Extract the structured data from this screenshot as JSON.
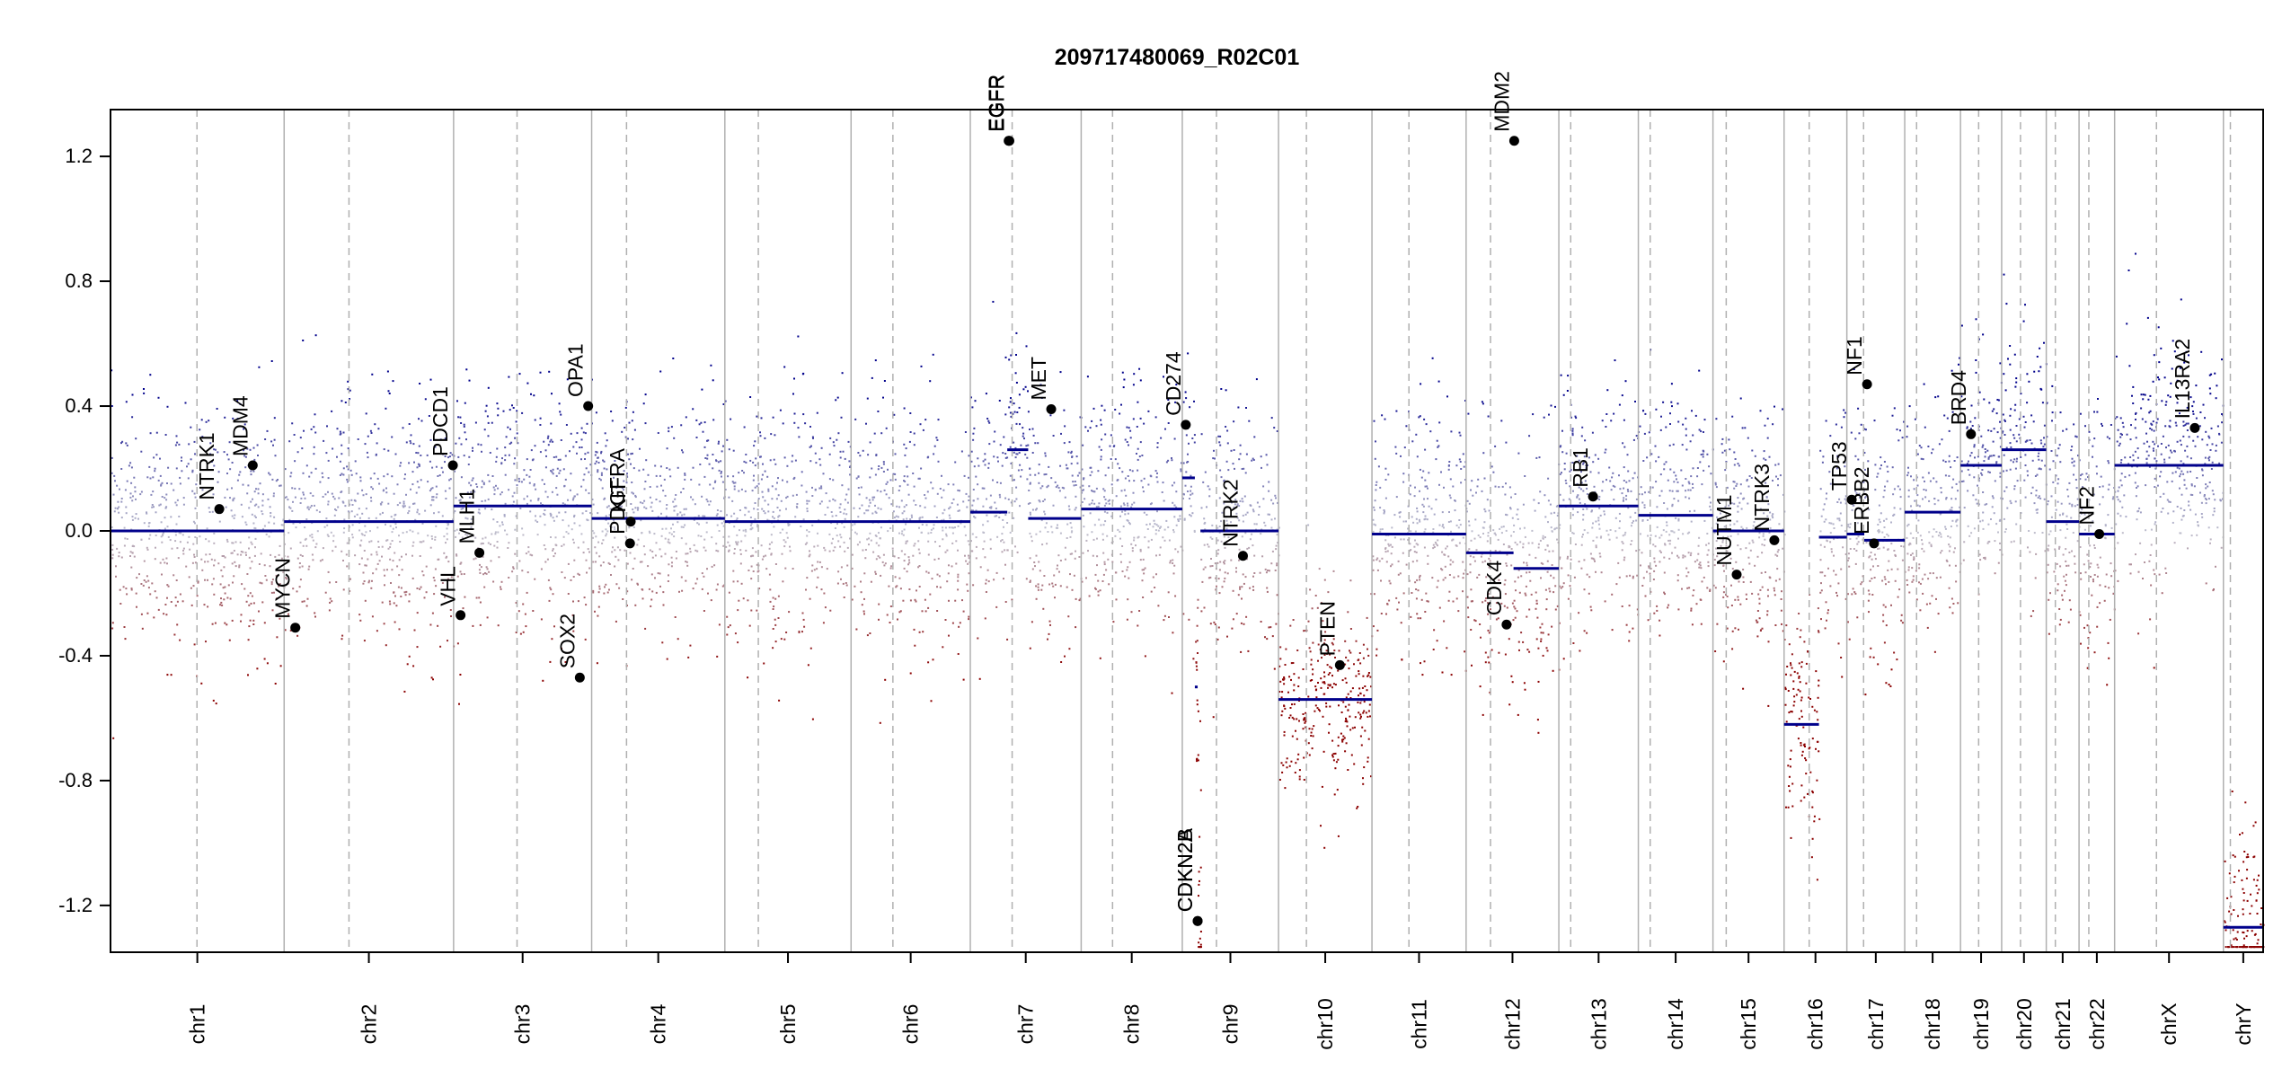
{
  "chart_data": {
    "type": "scatter",
    "title": "209717480069_R02C01",
    "xlabel": "",
    "ylabel": "",
    "ylim": [
      -1.35,
      1.35
    ],
    "yticks": [
      -1.2,
      -0.8,
      -0.4,
      0.0,
      0.4,
      0.8,
      1.2
    ],
    "ytick_labels": [
      "-1.2",
      "-0.8",
      "-0.4",
      "0.0",
      "0.4",
      "0.8",
      "1.2"
    ],
    "x_units": "Mb (cumulative genome position)",
    "chromosomes": [
      {
        "name": "chr1",
        "length": 249,
        "centromere": 124
      },
      {
        "name": "chr2",
        "length": 243,
        "centromere": 93
      },
      {
        "name": "chr3",
        "length": 198,
        "centromere": 91
      },
      {
        "name": "chr4",
        "length": 191,
        "centromere": 50
      },
      {
        "name": "chr5",
        "length": 181,
        "centromere": 48
      },
      {
        "name": "chr6",
        "length": 171,
        "centromere": 60
      },
      {
        "name": "chr7",
        "length": 159,
        "centromere": 60
      },
      {
        "name": "chr8",
        "length": 145,
        "centromere": 45
      },
      {
        "name": "chr9",
        "length": 138,
        "centromere": 49
      },
      {
        "name": "chr10",
        "length": 134,
        "centromere": 40
      },
      {
        "name": "chr11",
        "length": 135,
        "centromere": 53
      },
      {
        "name": "chr12",
        "length": 133,
        "centromere": 35
      },
      {
        "name": "chr13",
        "length": 114,
        "centromere": 17
      },
      {
        "name": "chr14",
        "length": 107,
        "centromere": 17
      },
      {
        "name": "chr15",
        "length": 102,
        "centromere": 19
      },
      {
        "name": "chr16",
        "length": 90,
        "centromere": 36
      },
      {
        "name": "chr17",
        "length": 83,
        "centromere": 24
      },
      {
        "name": "chr18",
        "length": 80,
        "centromere": 17
      },
      {
        "name": "chr19",
        "length": 59,
        "centromere": 26
      },
      {
        "name": "chr20",
        "length": 64,
        "centromere": 27
      },
      {
        "name": "chr21",
        "length": 47,
        "centromere": 13
      },
      {
        "name": "chr22",
        "length": 51,
        "centromere": 14
      },
      {
        "name": "chrX",
        "length": 156,
        "centromere": 60
      },
      {
        "name": "chrY",
        "length": 57,
        "centromere": 10
      }
    ],
    "segments": [
      {
        "chr": "chr1",
        "start": 0,
        "end": 249,
        "value": 0.0
      },
      {
        "chr": "chr2",
        "start": 0,
        "end": 243,
        "value": 0.03
      },
      {
        "chr": "chr3",
        "start": 0,
        "end": 198,
        "value": 0.08
      },
      {
        "chr": "chr4",
        "start": 0,
        "end": 191,
        "value": 0.04
      },
      {
        "chr": "chr5",
        "start": 0,
        "end": 181,
        "value": 0.03
      },
      {
        "chr": "chr6",
        "start": 0,
        "end": 171,
        "value": 0.03
      },
      {
        "chr": "chr7",
        "start": 0,
        "end": 53,
        "value": 0.06
      },
      {
        "chr": "chr7",
        "start": 53,
        "end": 83,
        "value": 0.26
      },
      {
        "chr": "chr7",
        "start": 83,
        "end": 159,
        "value": 0.04
      },
      {
        "chr": "chr8",
        "start": 0,
        "end": 145,
        "value": 0.07
      },
      {
        "chr": "chr9",
        "start": 0,
        "end": 18,
        "value": 0.17
      },
      {
        "chr": "chr9",
        "start": 18,
        "end": 22,
        "value": -0.5
      },
      {
        "chr": "chr9",
        "start": 22,
        "end": 26,
        "value": -1.25
      },
      {
        "chr": "chr9",
        "start": 26,
        "end": 138,
        "value": 0.0
      },
      {
        "chr": "chr10",
        "start": 0,
        "end": 134,
        "value": -0.54
      },
      {
        "chr": "chr11",
        "start": 0,
        "end": 135,
        "value": -0.01
      },
      {
        "chr": "chr12",
        "start": 0,
        "end": 68,
        "value": -0.07
      },
      {
        "chr": "chr12",
        "start": 68,
        "end": 133,
        "value": -0.12
      },
      {
        "chr": "chr13",
        "start": 0,
        "end": 114,
        "value": 0.08
      },
      {
        "chr": "chr14",
        "start": 0,
        "end": 107,
        "value": 0.05
      },
      {
        "chr": "chr15",
        "start": 0,
        "end": 102,
        "value": 0.0
      },
      {
        "chr": "chr16",
        "start": 0,
        "end": 50,
        "value": -0.62
      },
      {
        "chr": "chr16",
        "start": 50,
        "end": 90,
        "value": -0.02
      },
      {
        "chr": "chr17",
        "start": 0,
        "end": 25,
        "value": -0.01
      },
      {
        "chr": "chr17",
        "start": 25,
        "end": 83,
        "value": -0.03
      },
      {
        "chr": "chr18",
        "start": 0,
        "end": 80,
        "value": 0.06
      },
      {
        "chr": "chr19",
        "start": 0,
        "end": 59,
        "value": 0.21
      },
      {
        "chr": "chr20",
        "start": 0,
        "end": 64,
        "value": 0.26
      },
      {
        "chr": "chr21",
        "start": 0,
        "end": 47,
        "value": 0.03
      },
      {
        "chr": "chr22",
        "start": 0,
        "end": 51,
        "value": -0.01
      },
      {
        "chr": "chrX",
        "start": 0,
        "end": 156,
        "value": 0.21
      },
      {
        "chr": "chrY",
        "start": 0,
        "end": 57,
        "value": -1.27
      }
    ],
    "genes": [
      {
        "name": "NTRK1",
        "chr": "chr1",
        "pos": 156,
        "value": 0.07
      },
      {
        "name": "MDM4",
        "chr": "chr1",
        "pos": 204,
        "value": 0.21
      },
      {
        "name": "MYCN",
        "chr": "chr2",
        "pos": 16,
        "value": -0.31
      },
      {
        "name": "VHL",
        "chr": "chr3",
        "pos": 10,
        "value": -0.27
      },
      {
        "name": "PDCD1",
        "chr": "chr2",
        "pos": 242,
        "value": 0.21
      },
      {
        "name": "MLH1",
        "chr": "chr3",
        "pos": 37,
        "value": -0.07
      },
      {
        "name": "SOX2",
        "chr": "chr3",
        "pos": 181,
        "value": -0.47
      },
      {
        "name": "OPA1",
        "chr": "chr3",
        "pos": 193,
        "value": 0.4
      },
      {
        "name": "PDGFRA",
        "chr": "chr4",
        "pos": 55,
        "value": -0.04
      },
      {
        "name": "KIT",
        "chr": "chr4",
        "pos": 56,
        "value": 0.03
      },
      {
        "name": "EGFR",
        "chr": "chr7",
        "pos": 55,
        "value": 1.25
      },
      {
        "name": "EGFR_1",
        "chr": "chr7",
        "pos": 56,
        "value": 1.25
      },
      {
        "name": "MET",
        "chr": "chr7",
        "pos": 116,
        "value": 0.39
      },
      {
        "name": "CD274",
        "chr": "chr9",
        "pos": 5,
        "value": 0.34
      },
      {
        "name": "CDKN2A",
        "chr": "chr9",
        "pos": 22,
        "value": -1.25
      },
      {
        "name": "CDKN2B",
        "chr": "chr9",
        "pos": 22,
        "value": -1.25
      },
      {
        "name": "NTRK2",
        "chr": "chr9",
        "pos": 87,
        "value": -0.08
      },
      {
        "name": "PTEN",
        "chr": "chr10",
        "pos": 88,
        "value": -0.43
      },
      {
        "name": "CDK4",
        "chr": "chr12",
        "pos": 58,
        "value": -0.3
      },
      {
        "name": "MDM2",
        "chr": "chr12",
        "pos": 69,
        "value": 1.25
      },
      {
        "name": "RB1",
        "chr": "chr13",
        "pos": 49,
        "value": 0.11
      },
      {
        "name": "NUTM1",
        "chr": "chr15",
        "pos": 34,
        "value": -0.14
      },
      {
        "name": "NTRK3",
        "chr": "chr15",
        "pos": 88,
        "value": -0.03
      },
      {
        "name": "TP53",
        "chr": "chr17",
        "pos": 7,
        "value": 0.1
      },
      {
        "name": "NF1",
        "chr": "chr17",
        "pos": 29,
        "value": 0.47
      },
      {
        "name": "ERBB2",
        "chr": "chr17",
        "pos": 39,
        "value": -0.04
      },
      {
        "name": "BRD4",
        "chr": "chr19",
        "pos": 15,
        "value": 0.31
      },
      {
        "name": "NF2",
        "chr": "chr22",
        "pos": 29,
        "value": -0.01
      },
      {
        "name": "IL13RA2",
        "chr": "chrX",
        "pos": 115,
        "value": 0.33
      }
    ],
    "gene_labels": {
      "NTRK1": "NTRK1",
      "MDM4": "MDM4",
      "MYCN": "MYCN",
      "VHL": "VHL",
      "PDCD1": "PDCD1",
      "MLH1": "MLH1",
      "SOX2": "SOX2",
      "OPA1": "OPA1",
      "PDGFRA": "PDGFRA",
      "KIT": "KIT",
      "EGFR": "EGFR",
      "EGFR_1": "EGFR",
      "MET": "MET",
      "CD274": "CD274",
      "CDKN2A": "CDKN2A",
      "CDKN2B": "CDKN2B",
      "NTRK2": "NTRK2",
      "PTEN": "PTEN",
      "CDK4": "CDK4",
      "MDM2": "MDM2",
      "RB1": "RB1",
      "NUTM1": "NUTM1",
      "NTRK3": "NTRK3",
      "TP53": "TP53",
      "NF1": "NF1",
      "ERBB2": "ERBB2",
      "BRD4": "BRD4",
      "NF2": "NF2",
      "IL13RA2": "IL13RA2"
    },
    "grid": false,
    "colors": {
      "gain": "#00008b",
      "loss": "#8b0000",
      "neutral": "#b8b8c8",
      "segment": "#00008b",
      "chr_border": "#b0b0b0",
      "centromere": "#b0b0b0",
      "gene_point": "#000000"
    }
  }
}
